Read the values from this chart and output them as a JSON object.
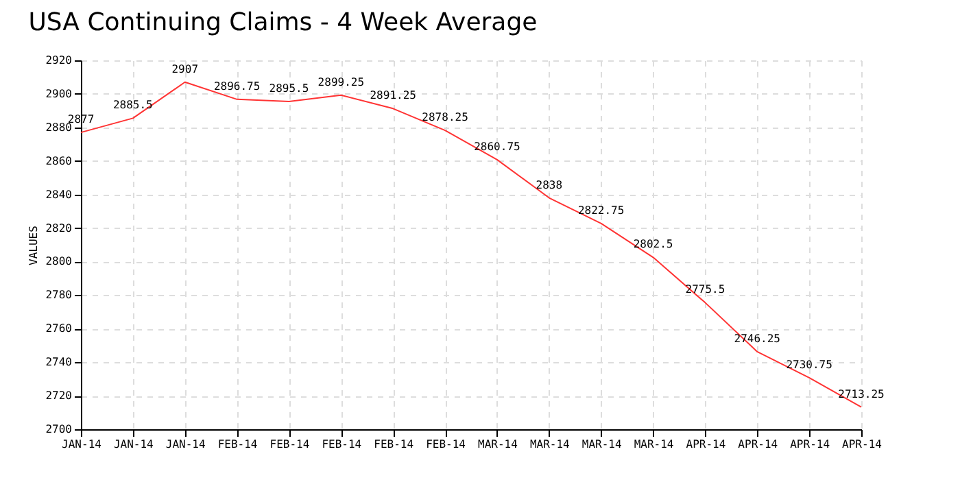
{
  "chart_data": {
    "type": "line",
    "title": "USA Continuing Claims - 4 Week Average",
    "ylabel": "VALUES",
    "categories": [
      "JAN-14",
      "JAN-14",
      "JAN-14",
      "FEB-14",
      "FEB-14",
      "FEB-14",
      "FEB-14",
      "FEB-14",
      "MAR-14",
      "MAR-14",
      "MAR-14",
      "MAR-14",
      "APR-14",
      "APR-14",
      "APR-14",
      "APR-14"
    ],
    "series": [
      {
        "color": "#ff3333",
        "values": [
          2877,
          2885.5,
          2907,
          2896.75,
          2895.5,
          2899.25,
          2891.25,
          2878.25,
          2860.75,
          2838,
          2822.75,
          2802.5,
          2775.5,
          2746.25,
          2730.75,
          2713.25
        ]
      }
    ],
    "ylim": [
      2700,
      2920
    ],
    "yticks": [
      2700,
      2720,
      2740,
      2760,
      2780,
      2800,
      2820,
      2840,
      2860,
      2880,
      2900,
      2920
    ],
    "grid": true,
    "data_labels": true,
    "marker": "none",
    "line_style": "solid"
  }
}
